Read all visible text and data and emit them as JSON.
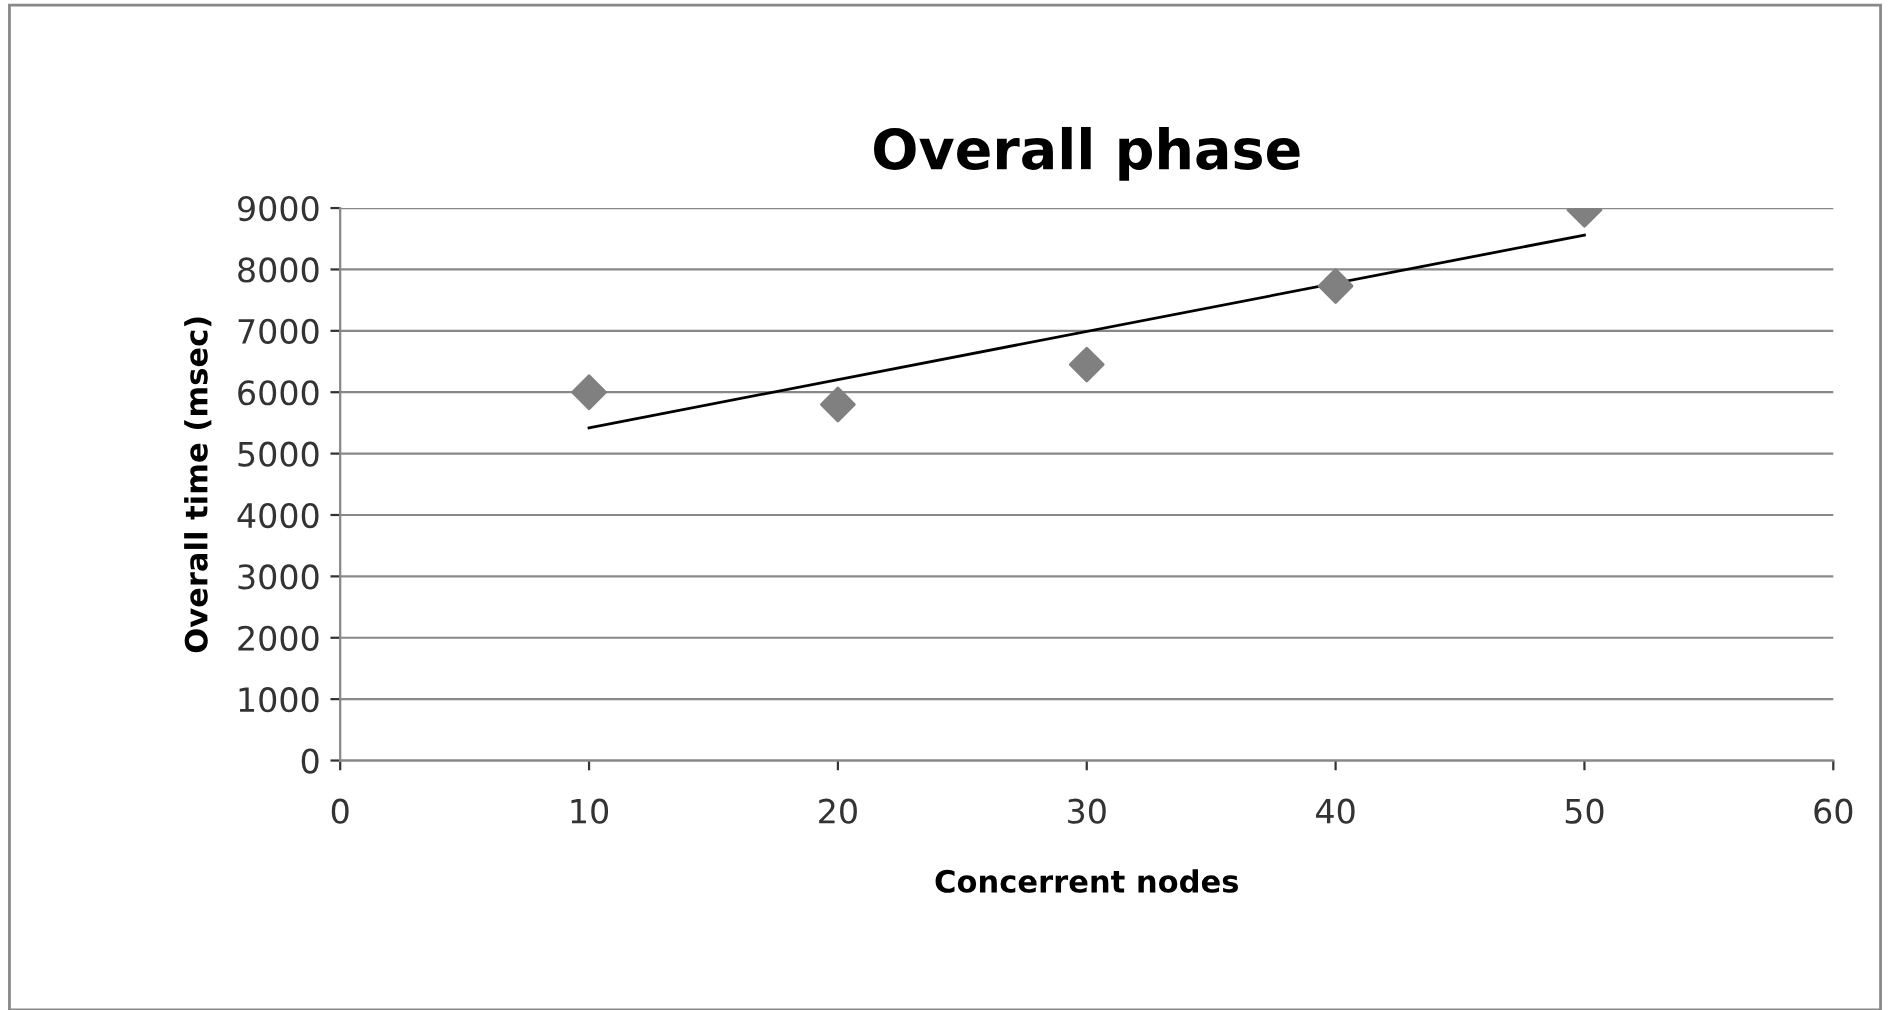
{
  "chart_data": {
    "type": "scatter",
    "title": "Overall phase",
    "xlabel": "Concerrent nodes",
    "ylabel": "Overall time (msec)",
    "series": [
      {
        "color": "#808080",
        "marker": "diamond",
        "x": [
          10,
          20,
          30,
          40,
          50
        ],
        "values": [
          6000,
          5800,
          6450,
          7730,
          8970
        ]
      },
      {
        "type": "line",
        "color": "#000000",
        "marker": "none",
        "x": [
          10,
          50
        ],
        "values": [
          5420,
          8560
        ]
      }
    ],
    "xlim": [
      0,
      60
    ],
    "xticks": [
      0,
      10,
      20,
      30,
      40,
      50,
      60
    ],
    "ylim": [
      0,
      9000
    ],
    "yticks": [
      0,
      1000,
      2000,
      3000,
      4000,
      5000,
      6000,
      7000,
      8000,
      9000
    ],
    "grid": "y"
  }
}
